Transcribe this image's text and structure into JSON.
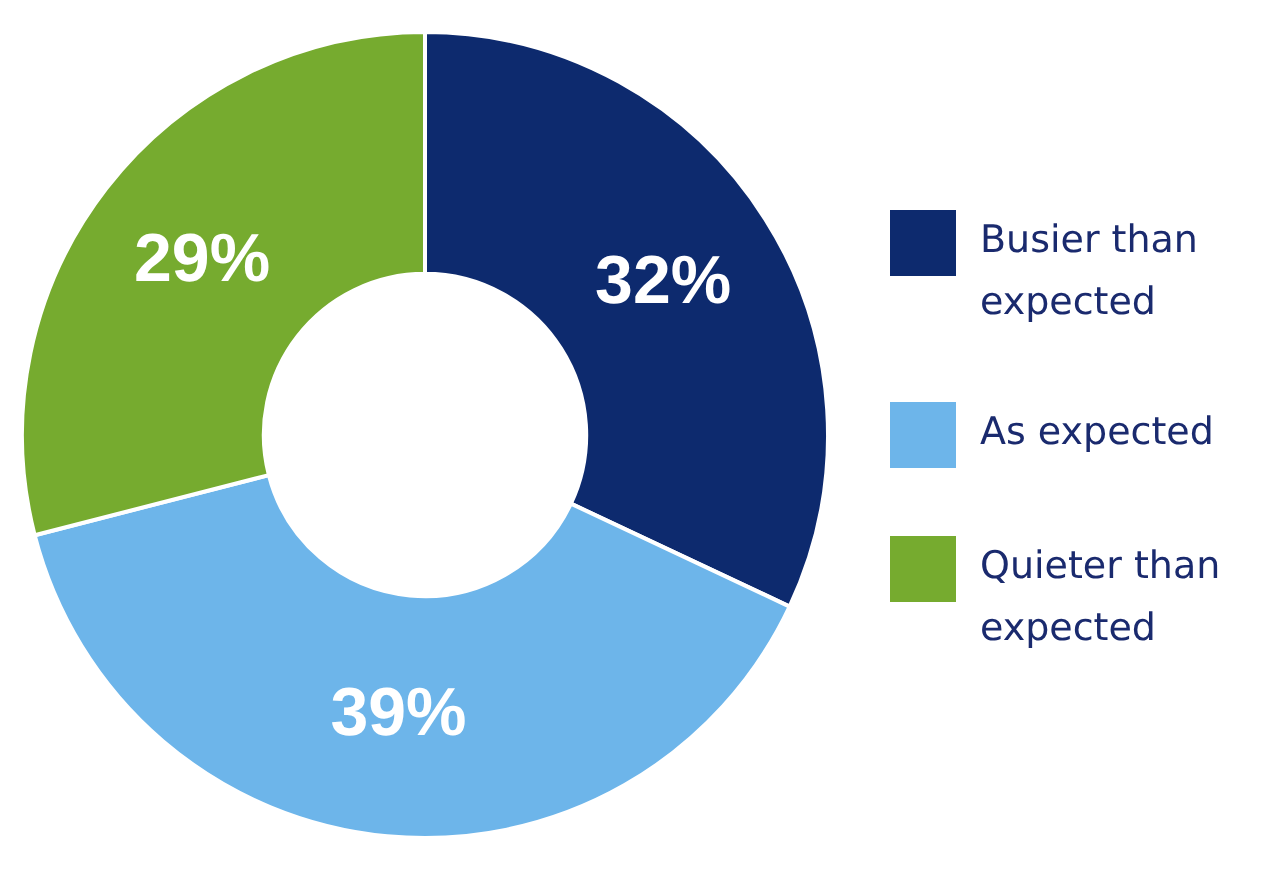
{
  "chart_data": {
    "type": "donut",
    "categories": [
      "Busier than expected",
      "As expected",
      "Quieter than expected"
    ],
    "values": [
      32,
      39,
      29
    ],
    "colors": [
      "#0d2a6e",
      "#6db5ea",
      "#76ab2f"
    ],
    "value_labels": [
      "32%",
      "39%",
      "29%"
    ],
    "legend": "right"
  }
}
